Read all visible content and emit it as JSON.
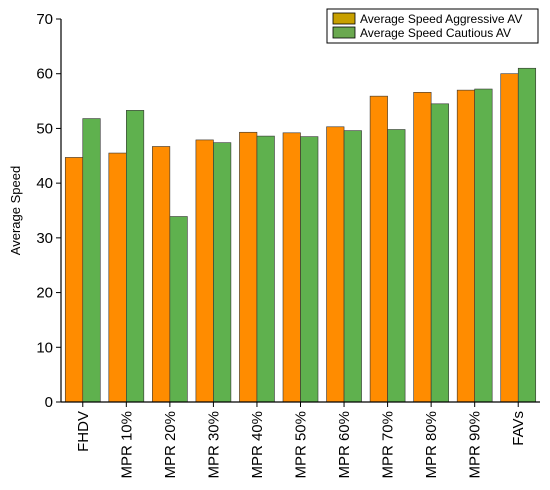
{
  "chart_data": {
    "type": "bar",
    "title": "",
    "xlabel": "",
    "ylabel": "Average Speed",
    "ylim": [
      0,
      70
    ],
    "yticks": [
      0,
      10,
      20,
      30,
      40,
      50,
      60,
      70
    ],
    "categories": [
      "FHDV",
      "MPR 10%",
      "MPR 20%",
      "MPR 30%",
      "MPR 40%",
      "MPR 50%",
      "MPR 60%",
      "MPR 70%",
      "MPR 80%",
      "MPR 90%",
      "FAVs"
    ],
    "series": [
      {
        "name": "Average Speed Aggressive AV",
        "color": "#ff8c00",
        "legend_color": "#c8a000",
        "values": [
          44.7,
          45.5,
          46.7,
          47.9,
          49.3,
          49.2,
          50.3,
          55.9,
          56.6,
          57.0,
          60.0
        ]
      },
      {
        "name": "Average Speed Cautious AV",
        "color": "#5fb14e",
        "legend_color": "#6aa84f",
        "values": [
          51.8,
          53.3,
          33.9,
          47.4,
          48.6,
          48.5,
          49.6,
          49.8,
          54.5,
          57.2,
          61.0
        ]
      }
    ],
    "grid": false,
    "legend_position": "top-right"
  }
}
